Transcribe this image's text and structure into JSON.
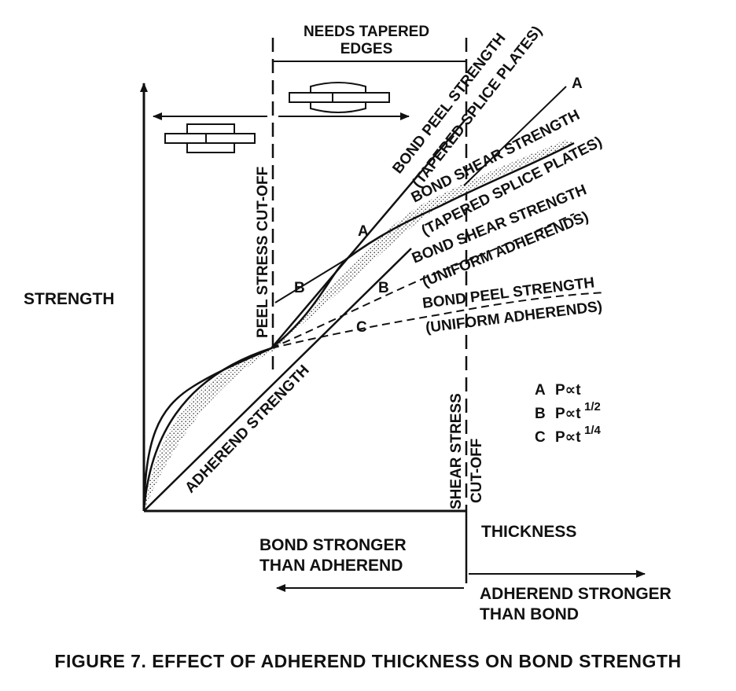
{
  "figure_caption": "FIGURE 7. EFFECT OF ADHEREND THICKNESS ON BOND STRENGTH",
  "axes": {
    "y_label": "STRENGTH",
    "x_label": "THICKNESS"
  },
  "zones": {
    "needs_tapered_line1": "NEEDS TAPERED",
    "needs_tapered_line2": "EDGES",
    "peel_cutoff": "PEEL STRESS CUT-OFF",
    "shear_cutoff_line1": "SHEAR STRESS",
    "shear_cutoff_line2": "CUT-OFF",
    "bond_stronger_line1": "BOND STRONGER",
    "bond_stronger_line2": "THAN ADHEREND",
    "adherend_stronger_line1": "ADHEREND STRONGER",
    "adherend_stronger_line2": "THAN BOND"
  },
  "curves": {
    "bond_peel_tapered_line1": "BOND PEEL STRENGTH",
    "bond_peel_tapered_line2": "(TAPERED SPLICE PLATES)",
    "bond_shear_tapered_line1": "BOND SHEAR STRENGTH",
    "bond_shear_tapered_line2": "(TAPERED SPLICE PLATES)",
    "bond_shear_uniform_line1": "BOND SHEAR STRENGTH",
    "bond_shear_uniform_line2": "(UNIFORM ADHERENDS)",
    "bond_peel_uniform_line1": "BOND PEEL STRENGTH",
    "bond_peel_uniform_line2": "(UNIFORM ADHERENDS)",
    "adherend_strength": "ADHEREND STRENGTH"
  },
  "curve_markers": {
    "a_upper": "A",
    "a_mid": "A",
    "b_left": "B",
    "b_mid": "B",
    "c_mid": "C"
  },
  "legend": [
    {
      "letter": "A",
      "relation": "P∝t"
    },
    {
      "letter": "B",
      "relation": "P∝t",
      "exponent": "1/2"
    },
    {
      "letter": "C",
      "relation": "P∝t",
      "exponent": "1/4"
    }
  ]
}
